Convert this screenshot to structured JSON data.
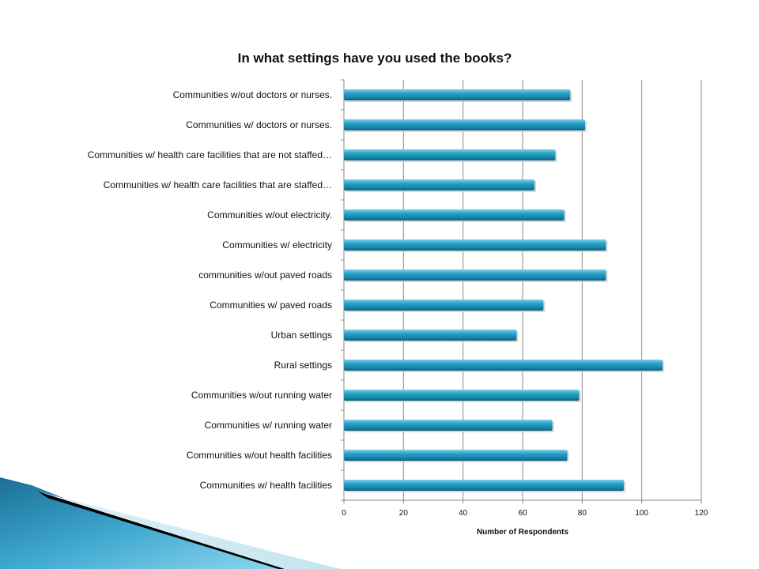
{
  "chart_data": {
    "type": "bar",
    "orientation": "horizontal",
    "title": "In what settings have you used the books?",
    "xlabel": "Number of Respondents",
    "ylabel": "",
    "xlim": [
      0,
      120
    ],
    "xticks": [
      0,
      20,
      40,
      60,
      80,
      100,
      120
    ],
    "grid": "vertical",
    "categories": [
      "Communities w/out doctors or nurses.",
      "Communities w/ doctors or nurses.",
      "Communities w/ health care facilities that are not staffed…",
      "Communities w/ health care facilities that are staffed…",
      "Communities w/out electricity.",
      "Communities w/ electricity",
      "communities w/out paved roads",
      "Communities w/ paved roads",
      "Urban settings",
      "Rural settings",
      "Communities w/out running water",
      "Communities w/ running water",
      "Communities w/out health facilities",
      "Communities w/ health facilities"
    ],
    "values": [
      76,
      81,
      71,
      64,
      74,
      88,
      88,
      67,
      58,
      107,
      79,
      70,
      75,
      94
    ],
    "bar_color": "#1a8cb0"
  }
}
